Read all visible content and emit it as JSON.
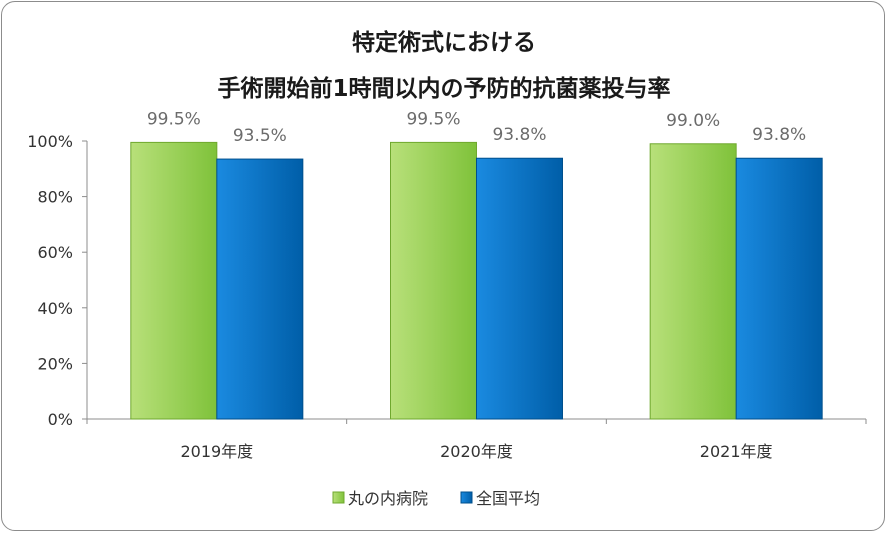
{
  "chart_data": {
    "type": "bar",
    "title": "特定術式における",
    "subtitle": "手術開始前1時間以内の予防的抗菌薬投与率",
    "categories": [
      "2019年度",
      "2020年度",
      "2021年度"
    ],
    "series": [
      {
        "name": "丸の内病院",
        "values": [
          99.5,
          99.5,
          99.0
        ],
        "labels": [
          "99.5%",
          "99.5%",
          "99.0%"
        ],
        "color": "#92d050"
      },
      {
        "name": "全国平均",
        "values": [
          93.5,
          93.8,
          93.8
        ],
        "labels": [
          "93.5%",
          "93.8%",
          "93.8%"
        ],
        "color": "#0070c0"
      }
    ],
    "ylim": [
      0,
      100
    ],
    "yticks": [
      0,
      20,
      40,
      60,
      80,
      100
    ],
    "ytick_labels": [
      "0%",
      "20%",
      "40%",
      "60%",
      "80%",
      "100%"
    ],
    "grid": false,
    "legend": "bottom"
  }
}
